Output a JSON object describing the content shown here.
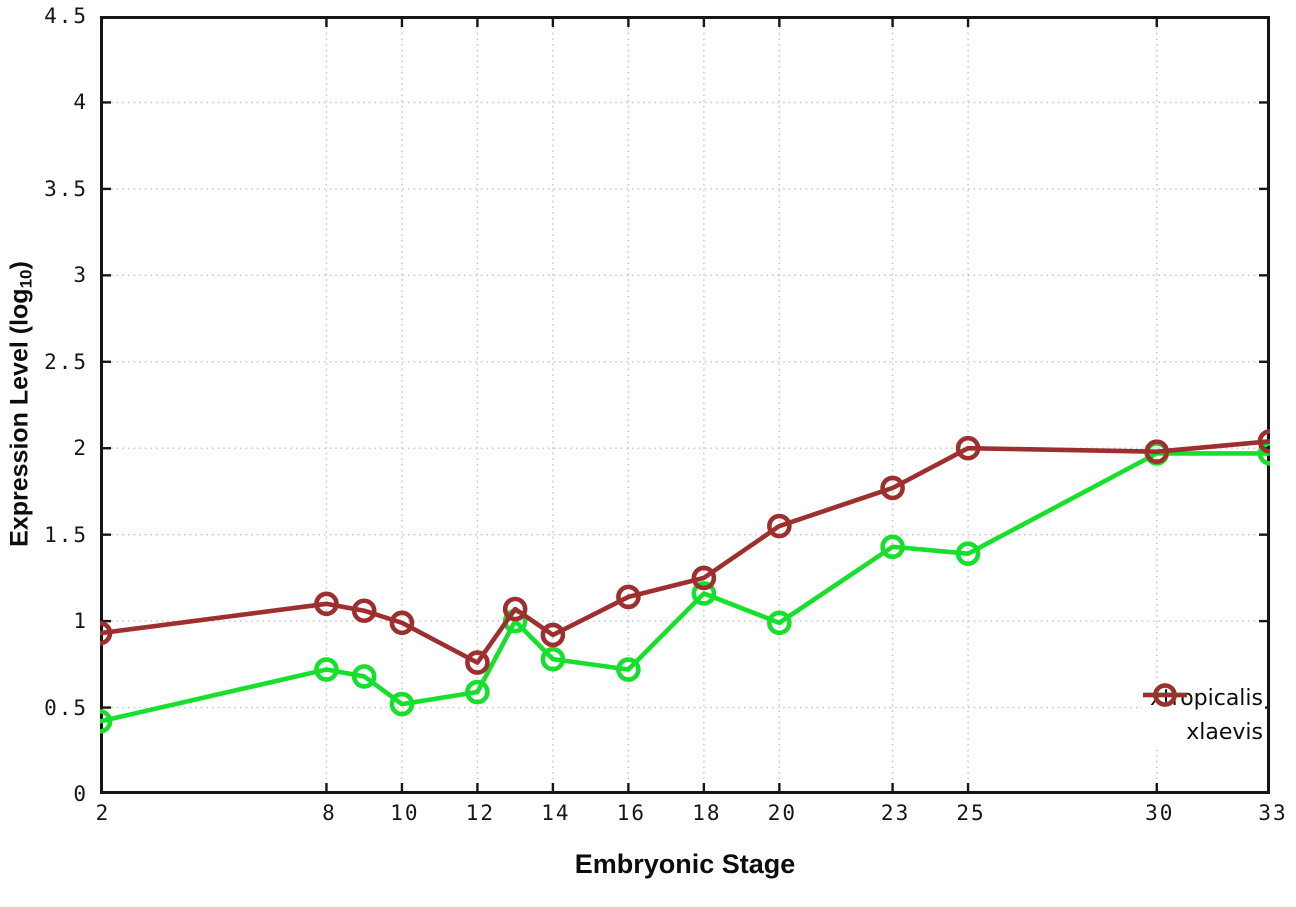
{
  "chart_data": {
    "type": "line",
    "title": "",
    "xlabel": "Embryonic Stage",
    "ylabel": "Expression Level (log10)",
    "ylabel_parts": {
      "prefix": "Expression Level (log",
      "sub": "10",
      "suffix": ")"
    },
    "x": [
      2,
      8,
      9,
      10,
      12,
      13,
      14,
      16,
      18,
      20,
      23,
      25,
      30,
      33
    ],
    "series": [
      {
        "name": "xtropicalis",
        "color": "#17e02d",
        "values": [
          0.42,
          0.72,
          0.68,
          0.52,
          0.59,
          1.0,
          0.78,
          0.72,
          1.16,
          0.99,
          1.43,
          1.39,
          1.97,
          1.97
        ]
      },
      {
        "name": "xlaevis",
        "color": "#9e2f2f",
        "values": [
          0.93,
          1.1,
          1.06,
          0.99,
          0.76,
          1.07,
          0.92,
          1.14,
          1.25,
          1.55,
          1.77,
          2.0,
          1.98,
          2.04
        ]
      }
    ],
    "xlim": [
      2,
      33
    ],
    "ylim": [
      0,
      4.5
    ],
    "xticks": [
      2,
      8,
      10,
      12,
      14,
      16,
      18,
      20,
      23,
      25,
      30,
      33
    ],
    "yticks": [
      0,
      0.5,
      1,
      1.5,
      2,
      2.5,
      3,
      3.5,
      4,
      4.5
    ],
    "grid": true,
    "legend_position": "bottom-right",
    "marker": "open-circle"
  },
  "colors": {
    "background": "#ffffff",
    "border": "#161616",
    "grid": "#c4c4c4",
    "tick_text": "#161616"
  }
}
